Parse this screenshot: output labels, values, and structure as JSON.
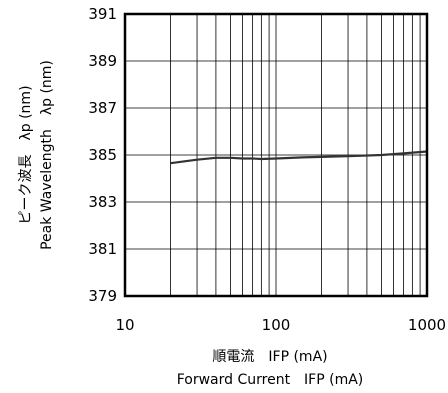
{
  "chart_data": {
    "type": "line",
    "x_scale": "log",
    "xlim": [
      10,
      1000
    ],
    "ylim": [
      379,
      391
    ],
    "x_ticks": [
      "10",
      "100",
      "1000"
    ],
    "y_ticks": [
      "379",
      "381",
      "383",
      "385",
      "387",
      "389",
      "391"
    ],
    "xlabel": [
      "順電流　IFP (mA)",
      "Forward Current　IFP (mA)"
    ],
    "ylabel": [
      "ピーク波長　λp (nm)",
      "Peak Wavelength　λp (nm)"
    ],
    "grid": true,
    "series": [
      {
        "x": [
          20,
          30,
          40,
          50,
          60,
          70,
          80,
          100,
          150,
          200,
          300,
          500,
          700,
          1000
        ],
        "y": [
          384.65,
          384.8,
          384.88,
          384.88,
          384.85,
          384.85,
          384.83,
          384.85,
          384.9,
          384.92,
          384.95,
          385.0,
          385.07,
          385.15
        ]
      }
    ],
    "line_color": "#333333"
  }
}
